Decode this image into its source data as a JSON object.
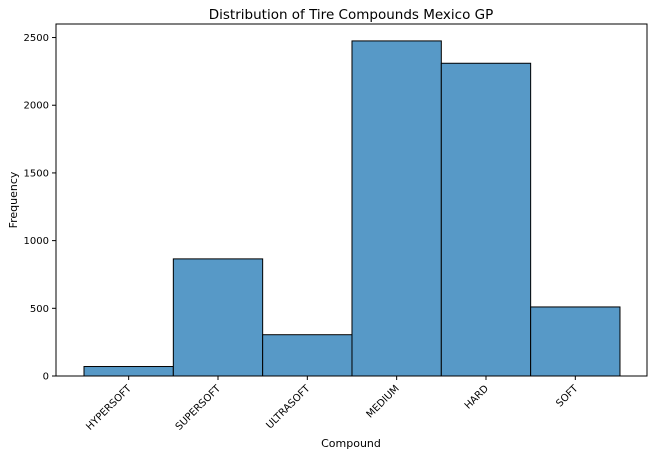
{
  "chart_data": {
    "type": "bar",
    "title": "Distribution of Tire Compounds Mexico GP",
    "xlabel": "Compound",
    "ylabel": "Frequency",
    "categories": [
      "HYPERSOFT",
      "SUPERSOFT",
      "ULTRASOFT",
      "MEDIUM",
      "HARD",
      "SOFT"
    ],
    "values": [
      70,
      865,
      305,
      2475,
      2310,
      510
    ],
    "ylim": [
      0,
      2600
    ],
    "yticks": [
      0,
      500,
      1000,
      1500,
      2000,
      2500
    ],
    "bar_color": "#5799c7",
    "bar_edge_color": "#000000",
    "grid": false,
    "legend": "none"
  }
}
